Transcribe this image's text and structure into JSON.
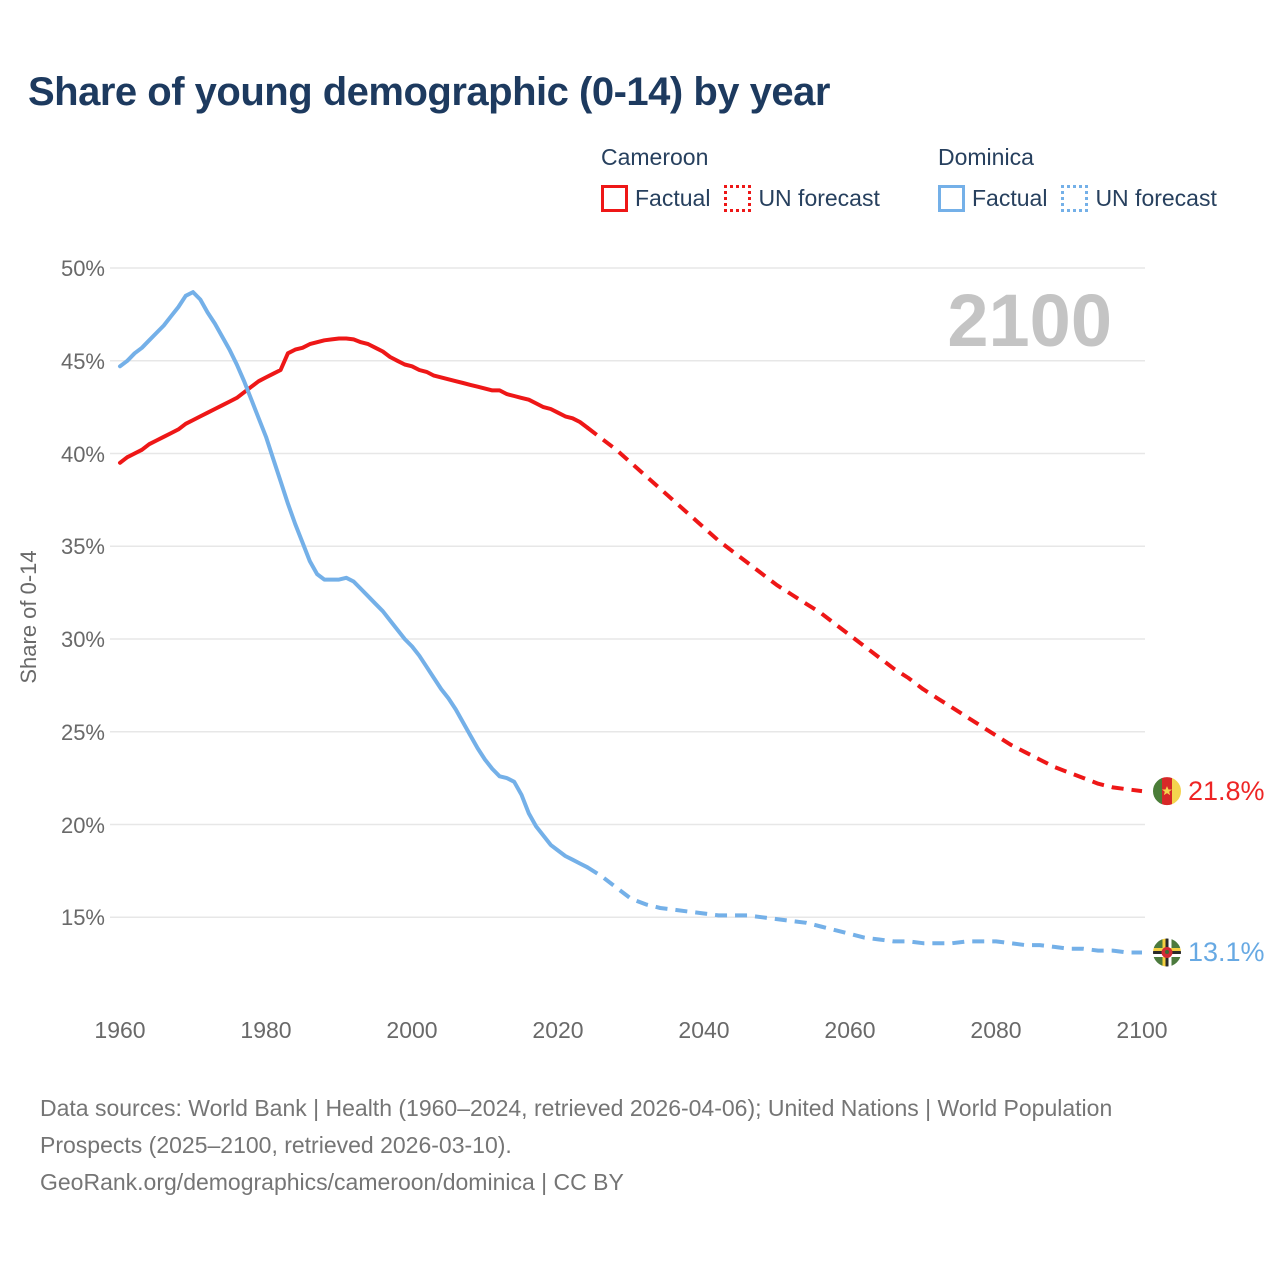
{
  "title": "Share of young demographic (0-14) by year",
  "legend": {
    "cameroon": {
      "country": "Cameroon",
      "items": [
        {
          "label": "Factual"
        },
        {
          "label": "UN forecast"
        }
      ]
    },
    "dominica": {
      "country": "Dominica",
      "items": [
        {
          "label": "Factual"
        },
        {
          "label": "UN forecast"
        }
      ]
    }
  },
  "colors": {
    "cameroon": "#ee1717",
    "dominica": "#74b0e8",
    "grid": "#e7e7e7",
    "annotation": "#c4c4c4"
  },
  "annotation_year": "2100",
  "y_axis_title": "Share of 0-14",
  "footer": {
    "sources_line": "Data sources: World Bank | Health (1960–2024, retrieved 2026-04-06); United Nations | World Population Prospects (2025–2100, retrieved 2026-03-10).",
    "attribution_line": "GeoRank.org/demographics/cameroon/dominica | CC BY"
  },
  "chart_data": {
    "type": "line",
    "title": "Share of young demographic (0-14) by year",
    "xlabel": "",
    "ylabel": "Share of 0-14",
    "x_ticks": [
      1960,
      1980,
      2000,
      2020,
      2040,
      2060,
      2080,
      2100
    ],
    "y_ticks": [
      50,
      45,
      40,
      35,
      30,
      25,
      20,
      15
    ],
    "y_tick_suffix": "%",
    "x_range": [
      1960,
      2100
    ],
    "y_range": [
      15,
      50
    ],
    "grid": "horizontal-only",
    "legend_position": "top-right",
    "end_markers": [
      {
        "series": "cameroon",
        "year": 2100,
        "value": 21.8,
        "label": "21.8%",
        "flag": "cameroon"
      },
      {
        "series": "dominica",
        "year": 2100,
        "value": 13.1,
        "label": "13.1%",
        "flag": "dominica"
      }
    ],
    "series": [
      {
        "name": "Cameroon Factual",
        "key": "cameroon_factual",
        "style": "solid",
        "color": "#ee1717",
        "points": [
          [
            1960,
            39.5
          ],
          [
            1961,
            39.8
          ],
          [
            1962,
            40.0
          ],
          [
            1963,
            40.2
          ],
          [
            1964,
            40.5
          ],
          [
            1965,
            40.7
          ],
          [
            1966,
            40.9
          ],
          [
            1967,
            41.1
          ],
          [
            1968,
            41.3
          ],
          [
            1969,
            41.6
          ],
          [
            1970,
            41.8
          ],
          [
            1971,
            42.0
          ],
          [
            1972,
            42.2
          ],
          [
            1973,
            42.4
          ],
          [
            1974,
            42.6
          ],
          [
            1975,
            42.8
          ],
          [
            1976,
            43.0
          ],
          [
            1977,
            43.3
          ],
          [
            1978,
            43.6
          ],
          [
            1979,
            43.9
          ],
          [
            1980,
            44.1
          ],
          [
            1981,
            44.3
          ],
          [
            1982,
            44.5
          ],
          [
            1983,
            45.4
          ],
          [
            1984,
            45.6
          ],
          [
            1985,
            45.7
          ],
          [
            1986,
            45.9
          ],
          [
            1987,
            46.0
          ],
          [
            1988,
            46.1
          ],
          [
            1989,
            46.15
          ],
          [
            1990,
            46.2
          ],
          [
            1991,
            46.2
          ],
          [
            1992,
            46.15
          ],
          [
            1993,
            46.0
          ],
          [
            1994,
            45.9
          ],
          [
            1995,
            45.7
          ],
          [
            1996,
            45.5
          ],
          [
            1997,
            45.2
          ],
          [
            1998,
            45.0
          ],
          [
            1999,
            44.8
          ],
          [
            2000,
            44.7
          ],
          [
            2001,
            44.5
          ],
          [
            2002,
            44.4
          ],
          [
            2003,
            44.2
          ],
          [
            2004,
            44.1
          ],
          [
            2005,
            44.0
          ],
          [
            2006,
            43.9
          ],
          [
            2007,
            43.8
          ],
          [
            2008,
            43.7
          ],
          [
            2009,
            43.6
          ],
          [
            2010,
            43.5
          ],
          [
            2011,
            43.4
          ],
          [
            2012,
            43.4
          ],
          [
            2013,
            43.2
          ],
          [
            2014,
            43.1
          ],
          [
            2015,
            43.0
          ],
          [
            2016,
            42.9
          ],
          [
            2017,
            42.7
          ],
          [
            2018,
            42.5
          ],
          [
            2019,
            42.4
          ],
          [
            2020,
            42.2
          ],
          [
            2021,
            42.0
          ],
          [
            2022,
            41.9
          ],
          [
            2023,
            41.7
          ],
          [
            2024,
            41.4
          ]
        ]
      },
      {
        "name": "Cameroon UN forecast",
        "key": "cameroon_forecast",
        "style": "dashed",
        "color": "#ee1717",
        "points": [
          [
            2024,
            41.4
          ],
          [
            2026,
            40.8
          ],
          [
            2028,
            40.2
          ],
          [
            2030,
            39.5
          ],
          [
            2032,
            38.8
          ],
          [
            2034,
            38.1
          ],
          [
            2036,
            37.4
          ],
          [
            2038,
            36.7
          ],
          [
            2040,
            36.0
          ],
          [
            2042,
            35.3
          ],
          [
            2044,
            34.7
          ],
          [
            2046,
            34.1
          ],
          [
            2048,
            33.5
          ],
          [
            2050,
            32.9
          ],
          [
            2052,
            32.4
          ],
          [
            2054,
            31.9
          ],
          [
            2056,
            31.4
          ],
          [
            2058,
            30.8
          ],
          [
            2060,
            30.2
          ],
          [
            2062,
            29.6
          ],
          [
            2064,
            29.0
          ],
          [
            2066,
            28.4
          ],
          [
            2068,
            27.9
          ],
          [
            2070,
            27.3
          ],
          [
            2072,
            26.8
          ],
          [
            2074,
            26.3
          ],
          [
            2076,
            25.8
          ],
          [
            2078,
            25.3
          ],
          [
            2080,
            24.8
          ],
          [
            2082,
            24.3
          ],
          [
            2084,
            23.9
          ],
          [
            2086,
            23.5
          ],
          [
            2088,
            23.1
          ],
          [
            2090,
            22.8
          ],
          [
            2092,
            22.5
          ],
          [
            2094,
            22.2
          ],
          [
            2096,
            22.0
          ],
          [
            2098,
            21.9
          ],
          [
            2100,
            21.8
          ]
        ]
      },
      {
        "name": "Dominica Factual",
        "key": "dominica_factual",
        "style": "solid",
        "color": "#74b0e8",
        "points": [
          [
            1960,
            44.7
          ],
          [
            1961,
            45.0
          ],
          [
            1962,
            45.4
          ],
          [
            1963,
            45.7
          ],
          [
            1964,
            46.1
          ],
          [
            1965,
            46.5
          ],
          [
            1966,
            46.9
          ],
          [
            1967,
            47.4
          ],
          [
            1968,
            47.9
          ],
          [
            1969,
            48.5
          ],
          [
            1970,
            48.7
          ],
          [
            1971,
            48.3
          ],
          [
            1972,
            47.6
          ],
          [
            1973,
            47.0
          ],
          [
            1974,
            46.3
          ],
          [
            1975,
            45.6
          ],
          [
            1976,
            44.8
          ],
          [
            1977,
            43.9
          ],
          [
            1978,
            42.9
          ],
          [
            1979,
            41.9
          ],
          [
            1980,
            40.9
          ],
          [
            1981,
            39.7
          ],
          [
            1982,
            38.5
          ],
          [
            1983,
            37.3
          ],
          [
            1984,
            36.2
          ],
          [
            1985,
            35.2
          ],
          [
            1986,
            34.2
          ],
          [
            1987,
            33.5
          ],
          [
            1988,
            33.2
          ],
          [
            1989,
            33.2
          ],
          [
            1990,
            33.2
          ],
          [
            1991,
            33.3
          ],
          [
            1992,
            33.1
          ],
          [
            1993,
            32.7
          ],
          [
            1994,
            32.3
          ],
          [
            1995,
            31.9
          ],
          [
            1996,
            31.5
          ],
          [
            1997,
            31.0
          ],
          [
            1998,
            30.5
          ],
          [
            1999,
            30.0
          ],
          [
            2000,
            29.6
          ],
          [
            2001,
            29.1
          ],
          [
            2002,
            28.5
          ],
          [
            2003,
            27.9
          ],
          [
            2004,
            27.3
          ],
          [
            2005,
            26.8
          ],
          [
            2006,
            26.2
          ],
          [
            2007,
            25.5
          ],
          [
            2008,
            24.8
          ],
          [
            2009,
            24.1
          ],
          [
            2010,
            23.5
          ],
          [
            2011,
            23.0
          ],
          [
            2012,
            22.6
          ],
          [
            2013,
            22.5
          ],
          [
            2014,
            22.3
          ],
          [
            2015,
            21.6
          ],
          [
            2016,
            20.6
          ],
          [
            2017,
            19.9
          ],
          [
            2018,
            19.4
          ],
          [
            2019,
            18.9
          ],
          [
            2020,
            18.6
          ],
          [
            2021,
            18.3
          ],
          [
            2022,
            18.1
          ],
          [
            2023,
            17.9
          ],
          [
            2024,
            17.7
          ]
        ]
      },
      {
        "name": "Dominica UN forecast",
        "key": "dominica_forecast",
        "style": "dashed",
        "color": "#74b0e8",
        "points": [
          [
            2024,
            17.7
          ],
          [
            2026,
            17.2
          ],
          [
            2028,
            16.6
          ],
          [
            2030,
            16.0
          ],
          [
            2032,
            15.7
          ],
          [
            2034,
            15.5
          ],
          [
            2036,
            15.4
          ],
          [
            2038,
            15.3
          ],
          [
            2040,
            15.2
          ],
          [
            2042,
            15.1
          ],
          [
            2044,
            15.1
          ],
          [
            2046,
            15.1
          ],
          [
            2048,
            15.0
          ],
          [
            2050,
            14.9
          ],
          [
            2052,
            14.8
          ],
          [
            2054,
            14.7
          ],
          [
            2056,
            14.5
          ],
          [
            2058,
            14.3
          ],
          [
            2060,
            14.1
          ],
          [
            2062,
            13.9
          ],
          [
            2064,
            13.8
          ],
          [
            2066,
            13.7
          ],
          [
            2068,
            13.7
          ],
          [
            2070,
            13.6
          ],
          [
            2072,
            13.6
          ],
          [
            2074,
            13.6
          ],
          [
            2076,
            13.7
          ],
          [
            2078,
            13.7
          ],
          [
            2080,
            13.7
          ],
          [
            2082,
            13.6
          ],
          [
            2084,
            13.5
          ],
          [
            2086,
            13.5
          ],
          [
            2088,
            13.4
          ],
          [
            2090,
            13.3
          ],
          [
            2092,
            13.3
          ],
          [
            2094,
            13.2
          ],
          [
            2096,
            13.2
          ],
          [
            2098,
            13.1
          ],
          [
            2100,
            13.1
          ]
        ]
      }
    ]
  }
}
